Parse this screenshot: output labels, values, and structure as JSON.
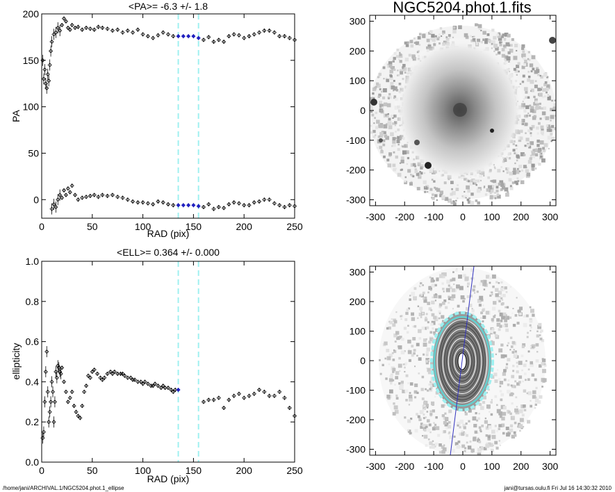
{
  "footer": {
    "left": "/home/jani/ARCHIVAL.1/NGC5204.phot.1_ellipse",
    "right": "jani@tursas.oulu.fi  Fri Jul 16 14:30:32 2010"
  },
  "colors": {
    "highlight": "#9ff0f0",
    "selected": "#2020c0",
    "marker": "#000000"
  },
  "chart_data": [
    {
      "type": "scatter",
      "title": "<PA>=  -6.3 +/-   1.8",
      "xlabel": "RAD (pix)",
      "ylabel": "PA",
      "xlim": [
        0,
        250
      ],
      "ylim": [
        -20,
        200
      ],
      "xticks": [
        "0",
        "50",
        "100",
        "150",
        "200",
        "250"
      ],
      "yticks": [
        "0",
        "50",
        "100",
        "150",
        "200"
      ],
      "highlight_range": [
        135,
        155
      ],
      "series": [
        {
          "x": [
            1,
            2,
            3,
            4,
            5,
            6,
            7,
            8,
            9,
            10,
            12,
            14,
            16,
            18,
            20,
            22,
            24,
            26,
            28,
            30,
            33,
            36,
            40,
            44,
            48,
            52,
            56,
            60,
            65,
            70,
            75,
            80,
            85,
            90,
            95,
            100,
            105,
            110,
            115,
            120,
            125,
            130,
            135,
            140,
            145,
            150,
            155,
            160,
            165,
            170,
            175,
            180,
            185,
            190,
            195,
            200,
            205,
            210,
            215,
            220,
            225,
            230,
            235,
            240,
            245,
            250
          ],
          "y": [
            150,
            130,
            140,
            125,
            120,
            135,
            128,
            145,
            160,
            170,
            178,
            180,
            185,
            182,
            188,
            195,
            192,
            185,
            183,
            188,
            185,
            186,
            183,
            185,
            184,
            183,
            186,
            185,
            184,
            182,
            183,
            180,
            182,
            180,
            183,
            178,
            176,
            174,
            177,
            180,
            178,
            176,
            176,
            176,
            176,
            176,
            174,
            172,
            175,
            170,
            172,
            170,
            176,
            178,
            177,
            174,
            176,
            178,
            180,
            182,
            182,
            180,
            176,
            176,
            174,
            172
          ]
        },
        {
          "x": [
            10,
            12,
            14,
            16,
            18,
            20,
            22,
            24,
            26,
            28,
            30,
            33,
            36,
            40,
            44,
            48,
            52,
            56,
            60,
            65,
            70,
            75,
            80,
            85,
            90,
            95,
            100,
            105,
            110,
            115,
            120,
            125,
            130,
            135,
            140,
            145,
            150,
            155,
            160,
            165,
            170,
            175,
            180,
            185,
            190,
            195,
            200,
            205,
            210,
            215,
            220,
            225,
            230,
            235,
            240,
            245,
            250
          ],
          "y": [
            -10,
            -5,
            -8,
            0,
            5,
            2,
            10,
            5,
            12,
            8,
            15,
            5,
            0,
            2,
            3,
            4,
            5,
            3,
            5,
            4,
            5,
            3,
            2,
            0,
            -2,
            -3,
            -3,
            -4,
            -5,
            -2,
            -3,
            -5,
            -6,
            -6,
            -6,
            -6,
            -6,
            -7,
            -8,
            -5,
            -10,
            -8,
            -9,
            -5,
            -3,
            -4,
            -6,
            -6,
            -3,
            -2,
            0,
            0,
            -4,
            -6,
            -8,
            -6,
            -7
          ]
        }
      ]
    },
    {
      "type": "image",
      "title": "NGC5204.phot.1.fits",
      "xlim": [
        -320,
        320
      ],
      "ylim": [
        -320,
        320
      ],
      "xticks": [
        "-300",
        "-200",
        "-100",
        "0",
        "100",
        "200",
        "300"
      ],
      "yticks": [
        "-300",
        "-200",
        "-100",
        "0",
        "100",
        "200",
        "300"
      ]
    },
    {
      "type": "scatter",
      "title": "<ELL>= 0.364 +/-  0.000",
      "xlabel": "RAD (pix)",
      "ylabel": "ellipticity",
      "xlim": [
        0,
        250
      ],
      "ylim": [
        0,
        1.0
      ],
      "xticks": [
        "0",
        "50",
        "100",
        "150",
        "200",
        "250"
      ],
      "yticks": [
        "0.0",
        "0.2",
        "0.4",
        "0.6",
        "0.8",
        "1.0"
      ],
      "highlight_range": [
        135,
        155
      ],
      "series": [
        {
          "x": [
            1,
            2,
            3,
            4,
            5,
            6,
            7,
            8,
            9,
            10,
            11,
            12,
            13,
            14,
            15,
            16,
            17,
            18,
            19,
            20,
            22,
            24,
            26,
            28,
            30,
            32,
            34,
            36,
            38,
            40,
            42,
            44,
            46,
            48,
            50,
            52,
            55,
            58,
            60,
            62,
            65,
            68,
            70,
            72,
            75,
            78,
            80,
            82,
            85,
            88,
            90,
            92,
            95,
            98,
            100,
            102,
            105,
            108,
            110,
            112,
            115,
            118,
            120,
            122,
            125,
            128,
            130,
            132,
            135
          ],
          "y": [
            0.12,
            0.15,
            0.3,
            0.45,
            0.55,
            0.35,
            0.2,
            0.25,
            0.3,
            0.4,
            0.35,
            0.2,
            0.3,
            0.45,
            0.42,
            0.48,
            0.47,
            0.45,
            0.44,
            0.47,
            0.4,
            0.35,
            0.3,
            0.32,
            0.35,
            0.28,
            0.25,
            0.23,
            0.22,
            0.28,
            0.35,
            0.38,
            0.43,
            0.42,
            0.45,
            0.46,
            0.44,
            0.42,
            0.41,
            0.42,
            0.44,
            0.45,
            0.44,
            0.45,
            0.44,
            0.44,
            0.44,
            0.43,
            0.42,
            0.42,
            0.41,
            0.41,
            0.4,
            0.4,
            0.39,
            0.4,
            0.39,
            0.38,
            0.38,
            0.39,
            0.38,
            0.37,
            0.38,
            0.37,
            0.37,
            0.36,
            0.35,
            0.36,
            0.36
          ]
        },
        {
          "x": [
            160,
            165,
            170,
            175,
            180,
            185,
            190,
            195,
            200,
            205,
            210,
            215,
            220,
            225,
            230,
            235,
            240,
            245,
            250
          ],
          "y": [
            0.3,
            0.31,
            0.31,
            0.32,
            0.27,
            0.31,
            0.33,
            0.34,
            0.32,
            0.33,
            0.34,
            0.36,
            0.35,
            0.33,
            0.33,
            0.35,
            0.32,
            0.27,
            0.23
          ]
        }
      ]
    },
    {
      "type": "image",
      "title": "",
      "xlim": [
        -320,
        320
      ],
      "ylim": [
        -320,
        320
      ],
      "xticks": [
        "-300",
        "-200",
        "-100",
        "0",
        "100",
        "200",
        "300"
      ],
      "yticks": [
        "-300",
        "-200",
        "-100",
        "0",
        "100",
        "200",
        "300"
      ]
    }
  ]
}
